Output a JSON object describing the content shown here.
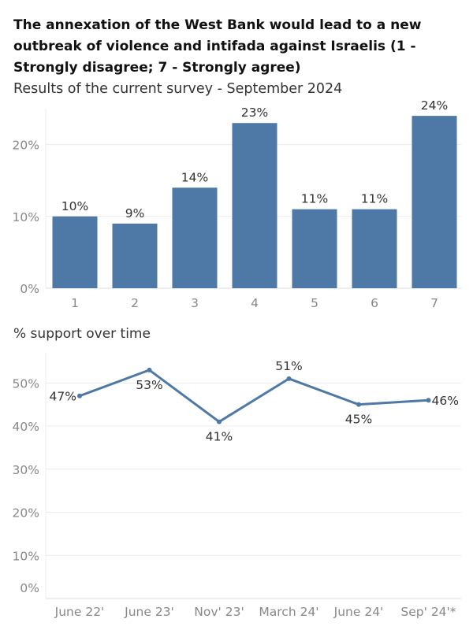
{
  "title": "The annexation of the West Bank would lead to a new outbreak of violence and intifada against Israelis (1 - Strongly disagree; 7 - Strongly agree)",
  "subtitle": "Results of the current survey - September 2024",
  "line_section_title": "% support over time",
  "colors": {
    "bar": "#4e79a7",
    "line": "#4e79a7",
    "grid": "#ececec",
    "axis_text": "#888888",
    "label_text": "#333333"
  },
  "chart_data": [
    {
      "type": "bar",
      "categories": [
        "1",
        "2",
        "3",
        "4",
        "5",
        "6",
        "7"
      ],
      "values": [
        10,
        9,
        14,
        23,
        11,
        11,
        24
      ],
      "data_labels": [
        "10%",
        "9%",
        "14%",
        "23%",
        "11%",
        "11%",
        "24%"
      ],
      "yticks": [
        0,
        10,
        20
      ],
      "ytick_labels": [
        "0%",
        "10%",
        "20%"
      ],
      "ylim": [
        0,
        25
      ],
      "grid": true
    },
    {
      "type": "line",
      "categories": [
        "June 22'",
        "June 23'",
        "Nov' 23'",
        "March 24'",
        "June 24'",
        "Sep' 24'*"
      ],
      "values": [
        47,
        53,
        41,
        51,
        45,
        46
      ],
      "data_labels": [
        "47%",
        "53%",
        "41%",
        "51%",
        "45%",
        "46%"
      ],
      "label_positions": [
        "left",
        "below",
        "below",
        "above",
        "below",
        "right"
      ],
      "yticks": [
        0,
        10,
        20,
        30,
        40,
        50
      ],
      "ytick_labels": [
        "0%",
        "10%",
        "20%",
        "30%",
        "40%",
        "50%"
      ],
      "ylim": [
        0,
        57
      ],
      "grid": true
    }
  ]
}
